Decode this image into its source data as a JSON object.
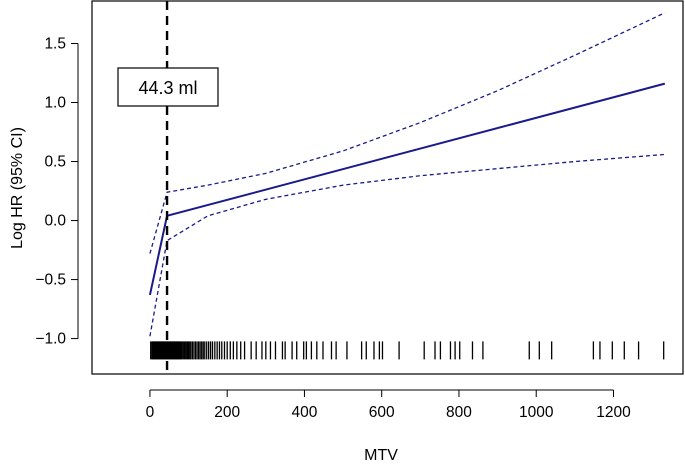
{
  "chart_data": {
    "type": "line",
    "title": "",
    "xlabel": "MTV",
    "ylabel": "Log HR (95% CI)",
    "xlim": [
      -150,
      1380
    ],
    "ylim": [
      -1.3,
      1.86
    ],
    "x_ticks": [
      0,
      200,
      400,
      600,
      800,
      1000,
      1200
    ],
    "y_ticks": [
      -1.0,
      -0.5,
      0.0,
      0.5,
      1.0,
      1.5
    ],
    "y_tick_labels": [
      "−1.0",
      "−0.5",
      "0.0",
      "0.5",
      "1.0",
      "1.5"
    ],
    "cutoff": {
      "x": 44.3,
      "label": "44.3 ml"
    },
    "series": [
      {
        "name": "estimate",
        "style": "solid",
        "x": [
          0,
          44.3,
          1333
        ],
        "y": [
          -0.63,
          0.04,
          1.16
        ]
      },
      {
        "name": "upper 95% CI",
        "style": "dashed",
        "x": [
          0,
          44.3,
          150,
          300,
          500,
          700,
          900,
          1100,
          1333
        ],
        "y": [
          -0.28,
          0.24,
          0.3,
          0.4,
          0.59,
          0.83,
          1.1,
          1.4,
          1.76
        ]
      },
      {
        "name": "lower 95% CI",
        "style": "dashed",
        "x": [
          0,
          44.3,
          150,
          300,
          500,
          700,
          900,
          1100,
          1333
        ],
        "y": [
          -0.98,
          -0.17,
          0.04,
          0.18,
          0.3,
          0.38,
          0.44,
          0.5,
          0.56
        ]
      }
    ],
    "rug": {
      "y": -1.1,
      "x": [
        2,
        5,
        7,
        9,
        11,
        13,
        15,
        17,
        19,
        21,
        23,
        25,
        27,
        29,
        31,
        33,
        35,
        37,
        39,
        41,
        43,
        45,
        47,
        49,
        51,
        53,
        55,
        57,
        59,
        61,
        63,
        65,
        67,
        69,
        71,
        73,
        75,
        77,
        79,
        82,
        85,
        88,
        91,
        94,
        97,
        100,
        103,
        106,
        110,
        114,
        118,
        122,
        126,
        130,
        134,
        138,
        142,
        147,
        152,
        157,
        162,
        168,
        174,
        180,
        186,
        193,
        200,
        208,
        216,
        225,
        235,
        245,
        262,
        275,
        290,
        300,
        312,
        325,
        343,
        350,
        368,
        380,
        398,
        405,
        418,
        432,
        448,
        470,
        482,
        510,
        548,
        560,
        580,
        594,
        602,
        645,
        710,
        738,
        752,
        778,
        790,
        802,
        835,
        862,
        982,
        1008,
        1040,
        1148,
        1165,
        1197,
        1228,
        1265,
        1330
      ]
    },
    "colors": {
      "line": "#1a1a8c",
      "cutoff": "#000000",
      "rug": "#000000"
    }
  }
}
